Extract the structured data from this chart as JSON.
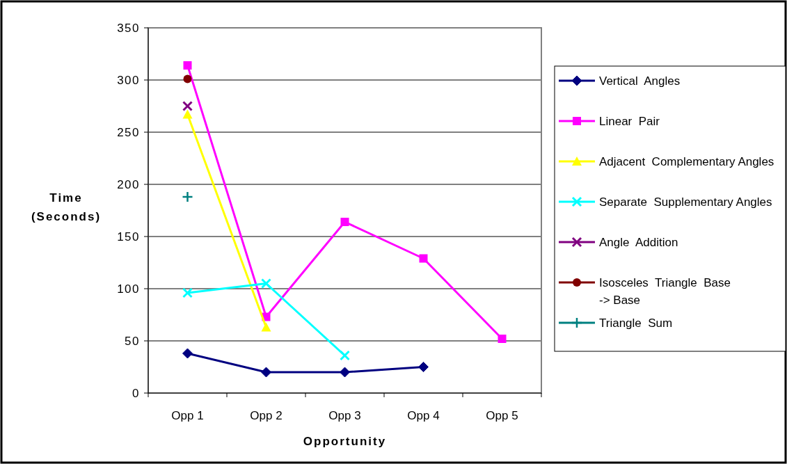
{
  "chart_data": {
    "type": "line",
    "xlabel": "Opportunity",
    "ylabel": "Time (Seconds)",
    "categories": [
      "Opp 1",
      "Opp 2",
      "Opp 3",
      "Opp 4",
      "Opp 5"
    ],
    "ylim": [
      0,
      350
    ],
    "yticks": [
      0,
      50,
      100,
      150,
      200,
      250,
      300,
      350
    ],
    "grid": "y",
    "legend": "right",
    "series": [
      {
        "name": "Vertical  Angles",
        "color": "#000080",
        "marker": "diamond",
        "values": [
          38,
          20,
          20,
          25,
          null
        ]
      },
      {
        "name": "Linear  Pair",
        "color": "#ff00ff",
        "marker": "square",
        "values": [
          314,
          73,
          164,
          129,
          52
        ]
      },
      {
        "name": "Adjacent  Complementary Angles",
        "color": "#ffff00",
        "marker": "triangle",
        "values": [
          267,
          63,
          null,
          null,
          null
        ]
      },
      {
        "name": "Separate  Supplementary Angles",
        "color": "#00ffff",
        "marker": "cross",
        "values": [
          96,
          105,
          36,
          null,
          null
        ]
      },
      {
        "name": "Angle  Addition",
        "color": "#800080",
        "marker": "cross",
        "values": [
          275,
          null,
          null,
          null,
          null
        ]
      },
      {
        "name": "Isosceles  Triangle  Base  -> Base",
        "color": "#800000",
        "marker": "circle",
        "values": [
          301,
          null,
          null,
          null,
          null
        ]
      },
      {
        "name": "Triangle  Sum",
        "color": "#008080",
        "marker": "plus",
        "values": [
          188,
          null,
          null,
          null,
          null
        ]
      }
    ]
  }
}
